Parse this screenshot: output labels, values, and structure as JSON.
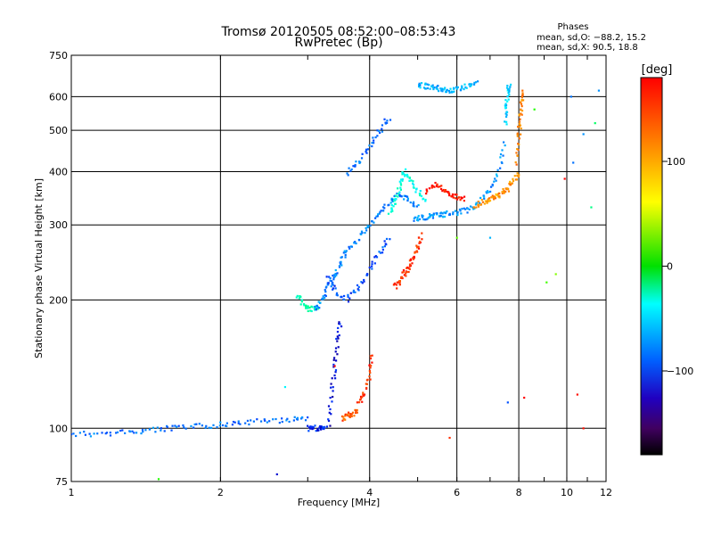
{
  "header": {
    "title_line1": "Tromsø 20120505 08:52:00–08:53:43",
    "title_line2": "RwPretec (Bp)",
    "phases_title": "Phases",
    "phases_line1": "mean, sd,O: −88.2, 15.2",
    "phases_line2": "mean, sd,X:  90.5, 18.8"
  },
  "colorbar": {
    "label": "[deg]",
    "ticks": [
      "100",
      "0",
      "−100"
    ],
    "tick_values": [
      100,
      0,
      -100
    ],
    "range": [
      -180,
      180
    ]
  },
  "chart_data": {
    "type": "scatter",
    "xlabel": "Frequency [MHz]",
    "ylabel": "Stationary phase Virtual Height [km]",
    "xscale": "log",
    "yscale": "log",
    "xlim": [
      1,
      12
    ],
    "ylim": [
      75,
      750
    ],
    "grid": true,
    "xticks": [
      1,
      2,
      4,
      6,
      8,
      10,
      12
    ],
    "yticks": [
      75,
      100,
      200,
      300,
      400,
      500,
      600,
      750
    ],
    "segments": [
      {
        "x": [
          1.0,
          1.15,
          1.3,
          1.45,
          1.6,
          1.8,
          2.0,
          2.2,
          2.5,
          2.8,
          3.0
        ],
        "y": [
          97,
          97,
          98,
          99,
          100,
          101,
          102,
          103,
          104,
          105,
          106
        ],
        "phase": -120
      },
      {
        "x": [
          3.0,
          3.1,
          3.2,
          3.25
        ],
        "y": [
          100,
          100,
          100,
          100
        ],
        "phase": -140
      },
      {
        "x": [
          2.85,
          2.95,
          3.05,
          3.15
        ],
        "y": [
          205,
          195,
          190,
          192
        ],
        "phase": -50
      },
      {
        "x": [
          3.1,
          3.2,
          3.3,
          3.4,
          3.5,
          3.6,
          3.8,
          4.0,
          4.2,
          4.4,
          4.6,
          4.8,
          5.0
        ],
        "y": [
          190,
          200,
          215,
          230,
          245,
          260,
          280,
          300,
          320,
          340,
          355,
          345,
          330
        ],
        "phase": -115
      },
      {
        "x": [
          3.3,
          3.4,
          3.6,
          3.8,
          4.0,
          4.2,
          4.4
        ],
        "y": [
          225,
          210,
          200,
          215,
          235,
          260,
          280
        ],
        "phase": -130
      },
      {
        "x": [
          3.3,
          3.35,
          3.4,
          3.45,
          3.5
        ],
        "y": [
          100,
          120,
          140,
          160,
          180
        ],
        "phase": -150
      },
      {
        "x": [
          3.5,
          3.6,
          3.7,
          3.8
        ],
        "y": [
          105,
          107,
          108,
          110
        ],
        "phase": 130
      },
      {
        "x": [
          3.8,
          3.9,
          4.0,
          4.05
        ],
        "y": [
          115,
          120,
          135,
          150
        ],
        "phase": 140
      },
      {
        "x": [
          4.5,
          4.6,
          4.7,
          4.8,
          4.9,
          5.0,
          5.1
        ],
        "y": [
          215,
          220,
          230,
          240,
          250,
          265,
          285
        ],
        "phase": 140
      },
      {
        "x": [
          4.9,
          5.1,
          5.3,
          5.5,
          5.7,
          6.0,
          6.3,
          6.6,
          7.0,
          7.3,
          7.5
        ],
        "y": [
          310,
          312,
          314,
          316,
          318,
          320,
          325,
          335,
          360,
          400,
          470
        ],
        "phase": -110
      },
      {
        "x": [
          7.5,
          7.55,
          7.6,
          7.65
        ],
        "y": [
          520,
          570,
          610,
          650
        ],
        "phase": -90
      },
      {
        "x": [
          5.0,
          5.2,
          5.4,
          5.6,
          5.8,
          6.0,
          6.3,
          6.6
        ],
        "y": [
          640,
          635,
          630,
          625,
          622,
          625,
          635,
          645
        ],
        "phase": -100
      },
      {
        "x": [
          5.2,
          5.4,
          5.6,
          5.8,
          6.0,
          6.2
        ],
        "y": [
          360,
          375,
          365,
          355,
          350,
          345
        ],
        "phase": 150
      },
      {
        "x": [
          6.5,
          6.8,
          7.0,
          7.2,
          7.4,
          7.6,
          7.8,
          8.0
        ],
        "y": [
          330,
          340,
          345,
          350,
          355,
          365,
          380,
          400
        ],
        "phase": 110
      },
      {
        "x": [
          7.9,
          8.0,
          8.05,
          8.1,
          8.15
        ],
        "y": [
          420,
          480,
          530,
          580,
          620
        ],
        "phase": 115
      },
      {
        "x": [
          4.4,
          4.5,
          4.6,
          4.7,
          4.8,
          5.0,
          5.2
        ],
        "y": [
          320,
          340,
          370,
          400,
          385,
          360,
          340
        ],
        "phase": -70
      },
      {
        "x": [
          3.6,
          3.8,
          4.0,
          4.2,
          4.4
        ],
        "y": [
          395,
          420,
          460,
          500,
          540
        ],
        "phase": -120
      }
    ],
    "scatter": [
      {
        "x": 1.5,
        "y": 76,
        "phase": 10
      },
      {
        "x": 2.6,
        "y": 78,
        "phase": -150
      },
      {
        "x": 2.7,
        "y": 125,
        "phase": -80
      },
      {
        "x": 3.4,
        "y": 140,
        "phase": 160
      },
      {
        "x": 5.8,
        "y": 95,
        "phase": 140
      },
      {
        "x": 6.0,
        "y": 280,
        "phase": 30
      },
      {
        "x": 7.0,
        "y": 280,
        "phase": -100
      },
      {
        "x": 7.6,
        "y": 115,
        "phase": -130
      },
      {
        "x": 8.2,
        "y": 118,
        "phase": 160
      },
      {
        "x": 8.6,
        "y": 560,
        "phase": 10
      },
      {
        "x": 9.1,
        "y": 220,
        "phase": 20
      },
      {
        "x": 9.9,
        "y": 385,
        "phase": 170
      },
      {
        "x": 10.2,
        "y": 600,
        "phase": -120
      },
      {
        "x": 10.3,
        "y": 420,
        "phase": -120
      },
      {
        "x": 10.8,
        "y": 490,
        "phase": -110
      },
      {
        "x": 11.2,
        "y": 330,
        "phase": -40
      },
      {
        "x": 11.6,
        "y": 620,
        "phase": -110
      },
      {
        "x": 11.4,
        "y": 520,
        "phase": -30
      },
      {
        "x": 10.5,
        "y": 120,
        "phase": 150
      },
      {
        "x": 10.8,
        "y": 100,
        "phase": 150
      },
      {
        "x": 9.5,
        "y": 230,
        "phase": 40
      }
    ]
  }
}
